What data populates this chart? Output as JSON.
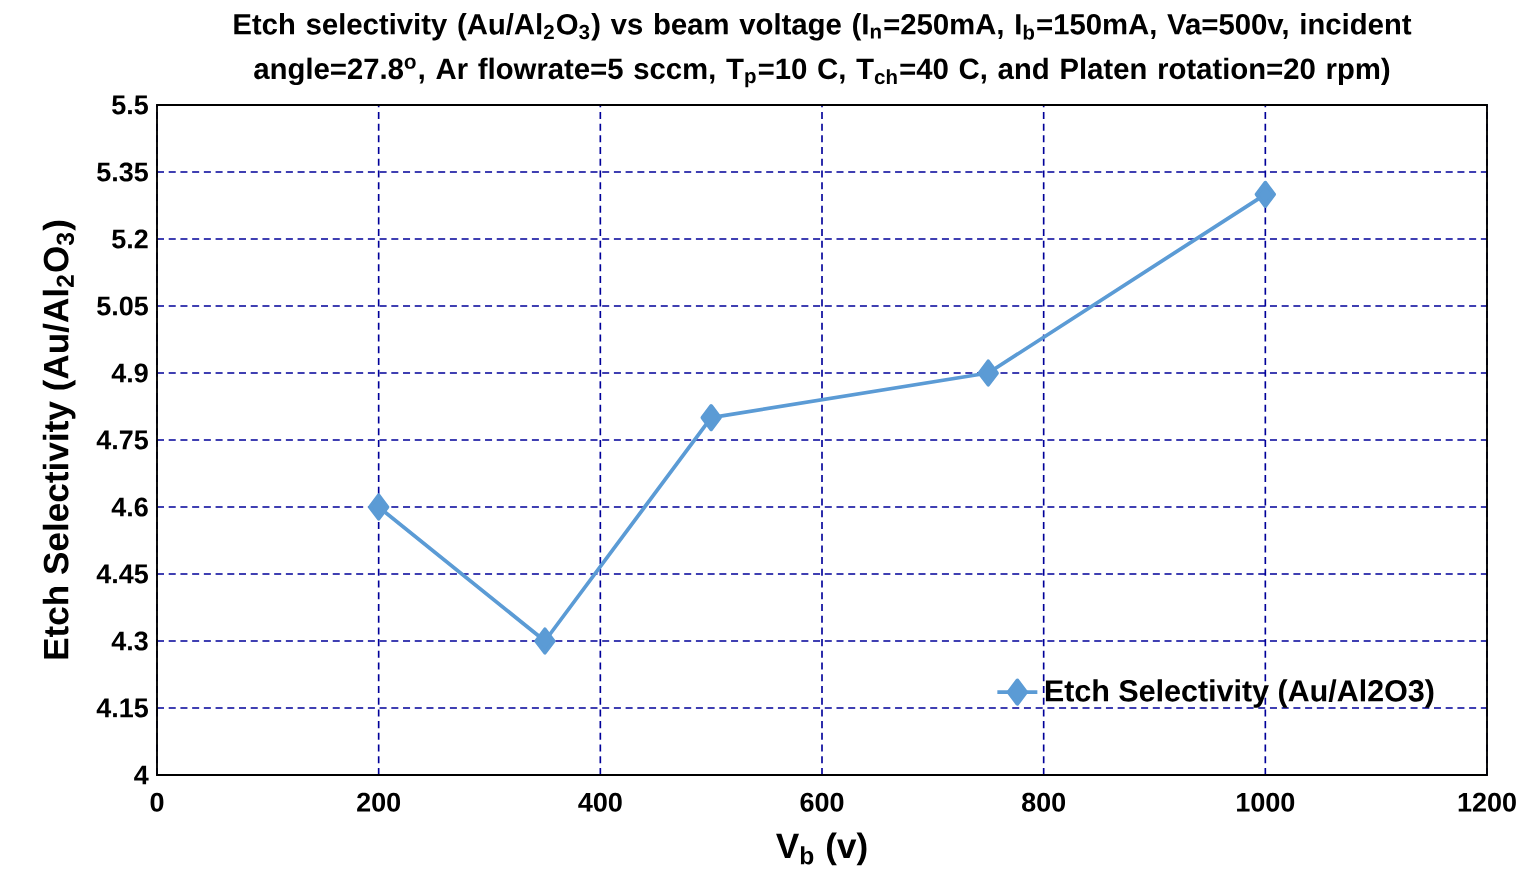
{
  "chart_data": {
    "type": "line",
    "title": "Etch selectivity (Au/Al$_{2}$O$_{3}$) vs beam voltage (I$_{n}$=250mA, I$_{b}$=150mA, Va=500v, incident angle=27.8$^{o}$, Ar flowrate=5 sccm, T$_{p}$=10 C, T$_{ch}$=40 C, and Platen rotation=20 rpm)",
    "xlabel": "V$_{b}$ (v)",
    "ylabel": "Etch Selectivity (Au/Al$_{2}$O$_{3}$)",
    "x": [
      200,
      350,
      500,
      750,
      1000
    ],
    "series": [
      {
        "name": "Etch Selectivity (Au/Al2O3)",
        "color": "#5b9bd5",
        "values": [
          4.6,
          4.3,
          4.8,
          4.9,
          5.3
        ]
      }
    ],
    "xlim": [
      0,
      1200
    ],
    "ylim": [
      4,
      5.5
    ],
    "xticks": [
      0,
      200,
      400,
      600,
      800,
      1000,
      1200
    ],
    "yticks": [
      4,
      4.15,
      4.3,
      4.45,
      4.6,
      4.75,
      4.9,
      5.05,
      5.2,
      5.35,
      5.5
    ],
    "grid": true,
    "legend": "bottom right",
    "marker": "diamond",
    "line_style": "solid"
  }
}
